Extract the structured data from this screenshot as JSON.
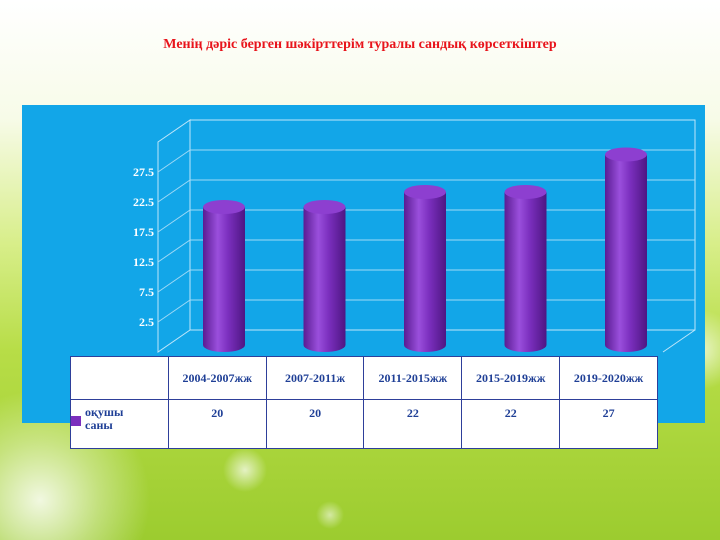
{
  "title": "Менің дәріс берген шәкірттерім туралы сандық көрсеткіштер",
  "colors": {
    "bar": "#7b2fbe",
    "panel": "#12a6e8",
    "title": "#e8141b"
  },
  "chart_data": {
    "type": "bar",
    "categories": [
      "2004-2007жж",
      "2007-2011ж",
      "2011-2015жж",
      "2015-2019жж",
      "2019-2020жж"
    ],
    "series": [
      {
        "name": "оқушы саны",
        "values": [
          20,
          20,
          22,
          22,
          27
        ]
      }
    ],
    "yticks": [
      "2.5",
      "7.5",
      "12.5",
      "17.5",
      "22.5",
      "27.5"
    ],
    "ylim": [
      0,
      30
    ],
    "grid": true,
    "legend": "table-left"
  }
}
